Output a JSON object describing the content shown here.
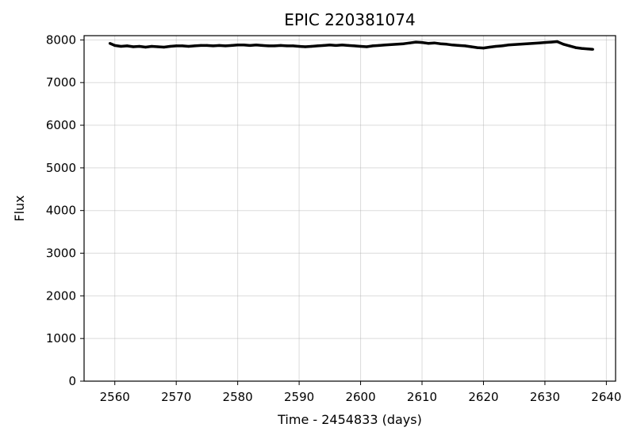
{
  "chart_data": {
    "type": "line",
    "title": "EPIC 220381074",
    "xlabel": "Time - 2454833 (days)",
    "ylabel": "Flux",
    "xlim": [
      2555,
      2641.5
    ],
    "ylim": [
      0,
      8100
    ],
    "grid": true,
    "x_ticks": [
      2560,
      2570,
      2580,
      2590,
      2600,
      2610,
      2620,
      2630,
      2640
    ],
    "y_ticks": [
      0,
      1000,
      2000,
      3000,
      4000,
      5000,
      6000,
      7000,
      8000
    ],
    "series": [
      {
        "name": "flux",
        "color": "#000000",
        "x": [
          2559.2,
          2560,
          2561,
          2562,
          2563,
          2564,
          2565,
          2566,
          2567,
          2568,
          2569,
          2570,
          2571,
          2572,
          2573,
          2574,
          2575,
          2576,
          2577,
          2578,
          2579,
          2580,
          2581,
          2582,
          2583,
          2584,
          2585,
          2586,
          2587,
          2588,
          2589,
          2590,
          2591,
          2592,
          2593,
          2594,
          2595,
          2596,
          2597,
          2598,
          2599,
          2600,
          2601,
          2602,
          2603,
          2604,
          2605,
          2606,
          2607,
          2608,
          2609,
          2610,
          2611,
          2612,
          2613,
          2614,
          2615,
          2616,
          2617,
          2618,
          2619,
          2620,
          2621,
          2622,
          2623,
          2624,
          2625,
          2626,
          2627,
          2628,
          2629,
          2630,
          2631,
          2632,
          2633,
          2634,
          2635,
          2636,
          2637,
          2637.8
        ],
        "values": [
          7920,
          7870,
          7850,
          7860,
          7840,
          7850,
          7830,
          7850,
          7840,
          7830,
          7850,
          7860,
          7860,
          7850,
          7860,
          7870,
          7870,
          7860,
          7870,
          7860,
          7870,
          7880,
          7880,
          7870,
          7880,
          7870,
          7860,
          7860,
          7870,
          7860,
          7860,
          7850,
          7840,
          7850,
          7860,
          7870,
          7880,
          7870,
          7880,
          7870,
          7860,
          7850,
          7840,
          7860,
          7870,
          7880,
          7890,
          7900,
          7910,
          7930,
          7950,
          7940,
          7920,
          7930,
          7910,
          7900,
          7880,
          7870,
          7860,
          7840,
          7820,
          7810,
          7830,
          7850,
          7860,
          7880,
          7890,
          7900,
          7910,
          7920,
          7930,
          7940,
          7950,
          7960,
          7900,
          7860,
          7820,
          7800,
          7790,
          7780
        ]
      }
    ]
  }
}
